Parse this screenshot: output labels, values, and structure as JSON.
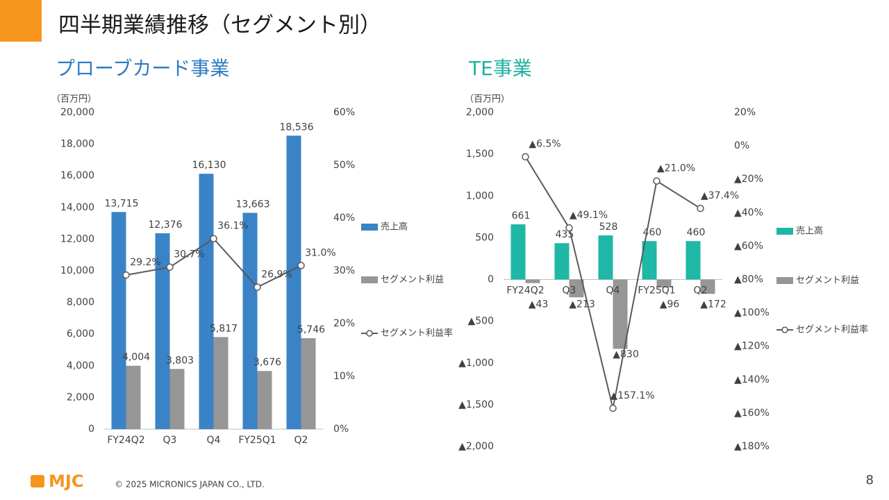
{
  "header": {
    "title": "四半期業績推移（セグメント別）"
  },
  "chart_data": [
    {
      "type": "combo",
      "title": "プローブカード事業",
      "y_label": "（百万円）",
      "categories": [
        "FY24Q2",
        "Q3",
        "Q4",
        "FY25Q1",
        "Q2"
      ],
      "series": [
        {
          "name": "売上高",
          "type": "bar",
          "color": "#3a83c7",
          "values": [
            13715,
            12376,
            16130,
            13663,
            18536
          ],
          "value_labels": [
            "13,715",
            "12,376",
            "16,130",
            "13,663",
            "18,536"
          ]
        },
        {
          "name": "セグメント利益",
          "type": "bar",
          "color": "#969696",
          "values": [
            4004,
            3803,
            5817,
            3676,
            5746
          ],
          "value_labels": [
            "4,004",
            "3,803",
            "5,817",
            "3,676",
            "5,746"
          ]
        },
        {
          "name": "セグメント利益率",
          "type": "line",
          "axis": "y2",
          "color": "#595959",
          "values": [
            29.2,
            30.7,
            36.1,
            26.9,
            31.0
          ],
          "value_labels": [
            "29.2%",
            "30.7%",
            "36.1%",
            "26.9%",
            "31.0%"
          ]
        }
      ],
      "ylim": [
        0,
        20000
      ],
      "yticks": [
        0,
        {
          "value": 2000,
          "label": "2,000"
        },
        {
          "value": 4000,
          "label": "4,000"
        },
        {
          "value": 6000,
          "label": "6,000"
        },
        {
          "value": 8000,
          "label": "8,000"
        },
        {
          "value": 10000,
          "label": "10,000"
        },
        {
          "value": 12000,
          "label": "12,000"
        },
        {
          "value": 14000,
          "label": "14,000"
        },
        {
          "value": 16000,
          "label": "16,000"
        },
        {
          "value": 18000,
          "label": "18,000"
        },
        {
          "value": 20000,
          "label": "20,000"
        }
      ],
      "y2lim": [
        0,
        60
      ],
      "y2ticks": [
        {
          "value": 0,
          "label": "0%"
        },
        {
          "value": 10,
          "label": "10%"
        },
        {
          "value": 20,
          "label": "20%"
        },
        {
          "value": 30,
          "label": "30%"
        },
        {
          "value": 40,
          "label": "40%"
        },
        {
          "value": 50,
          "label": "50%"
        },
        {
          "value": 60,
          "label": "60%"
        }
      ],
      "legend": "right",
      "grid": false
    },
    {
      "type": "combo",
      "title": "TE事業",
      "y_label": "（百万円）",
      "categories": [
        "FY24Q2",
        "Q3",
        "Q4",
        "FY25Q1",
        "Q2"
      ],
      "series": [
        {
          "name": "売上高",
          "type": "bar",
          "color": "#1fb7a6",
          "values": [
            661,
            435,
            528,
            460,
            460
          ]
        },
        {
          "name": "セグメント利益",
          "type": "bar",
          "color": "#969696",
          "values": [
            -43,
            -213,
            -830,
            -96,
            -172
          ],
          "value_labels": [
            "▲43",
            "▲213",
            "▲830",
            "▲96",
            "▲172"
          ]
        },
        {
          "name": "セグメント利益率",
          "type": "line",
          "axis": "y2",
          "color": "#595959",
          "values": [
            -6.5,
            -49.1,
            -157.1,
            -21.0,
            -37.4
          ],
          "value_labels": [
            "▲6.5%",
            "▲49.1%",
            "▲157.1%",
            "▲21.0%",
            "▲37.4%"
          ]
        }
      ],
      "ylim": [
        -2000,
        2000
      ],
      "yticks": [
        {
          "value": -2000,
          "label": "▲2,000"
        },
        {
          "value": -1500,
          "label": "▲1,500"
        },
        {
          "value": -1000,
          "label": "▲1,000"
        },
        {
          "value": -500,
          "label": "▲500"
        },
        0,
        500,
        {
          "value": 1000,
          "label": "1,000"
        },
        {
          "value": 1500,
          "label": "1,500"
        },
        {
          "value": 2000,
          "label": "2,000"
        }
      ],
      "y2lim": [
        -180,
        20
      ],
      "y2ticks": [
        {
          "value": -180,
          "label": "▲180%"
        },
        {
          "value": -160,
          "label": "▲160%"
        },
        {
          "value": -140,
          "label": "▲140%"
        },
        {
          "value": -120,
          "label": "▲120%"
        },
        {
          "value": -100,
          "label": "▲100%"
        },
        {
          "value": -80,
          "label": "▲80%"
        },
        {
          "value": -60,
          "label": "▲60%"
        },
        {
          "value": -40,
          "label": "▲40%"
        },
        {
          "value": -20,
          "label": "▲20%"
        },
        {
          "value": 0,
          "label": "0%"
        },
        {
          "value": 20,
          "label": "20%"
        }
      ],
      "legend": "right",
      "grid": false
    }
  ],
  "footer": {
    "logo": "MJC",
    "copyright": "© 2025 MICRONICS JAPAN CO., LTD.",
    "page": "8"
  }
}
